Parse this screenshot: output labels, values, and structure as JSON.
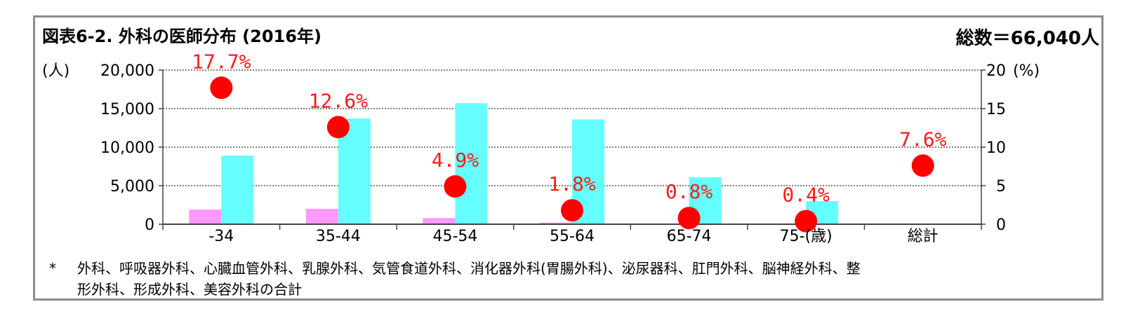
{
  "header": {
    "title": "図表6-2. 外科の医師分布 (2016年)",
    "total": "総数＝66,040人"
  },
  "footnote": {
    "line1": "外科、呼吸器外科、心臓血管外科、乳腺外科、気管食道外科、消化器外科(胃腸外科)、泌尿器科、肛門外科、脳神経外科、整",
    "line2": "形外科、形成外科、美容外科の合計",
    "marker": "*"
  },
  "chart_data": {
    "type": "bar",
    "categories": [
      "-34",
      "35-44",
      "45-54",
      "55-64",
      "65-74",
      "75-(歳)",
      "総計"
    ],
    "left_axis": {
      "unit": "(人)",
      "ylim": [
        0,
        20000
      ],
      "ticks": [
        "0",
        "5,000",
        "10,000",
        "15,000",
        "20,000"
      ],
      "tick_values": [
        0,
        5000,
        10000,
        15000,
        20000
      ]
    },
    "right_axis": {
      "unit": "(%)",
      "ylim": [
        0,
        20
      ],
      "ticks": [
        "0",
        "5",
        "10",
        "15",
        "20"
      ],
      "tick_values": [
        0,
        5,
        10,
        15,
        20
      ]
    },
    "series": [
      {
        "type": "bar",
        "axis": "left",
        "values": [
          1900,
          2000,
          800,
          200,
          0,
          0,
          null
        ],
        "color": "#ff99ff"
      },
      {
        "type": "bar",
        "axis": "left",
        "values": [
          8900,
          13700,
          15700,
          13600,
          6100,
          3000,
          null
        ],
        "color": "#66ffff"
      },
      {
        "type": "scatter",
        "axis": "right",
        "values": [
          17.7,
          12.6,
          4.9,
          1.8,
          0.8,
          0.4,
          7.6
        ],
        "labels": [
          "17.7%",
          "12.6%",
          "4.9%",
          "1.8%",
          "0.8%",
          "0.4%",
          "7.6%"
        ],
        "color": "#ff0000"
      }
    ],
    "grid": true,
    "gridline_style": "dotted"
  }
}
